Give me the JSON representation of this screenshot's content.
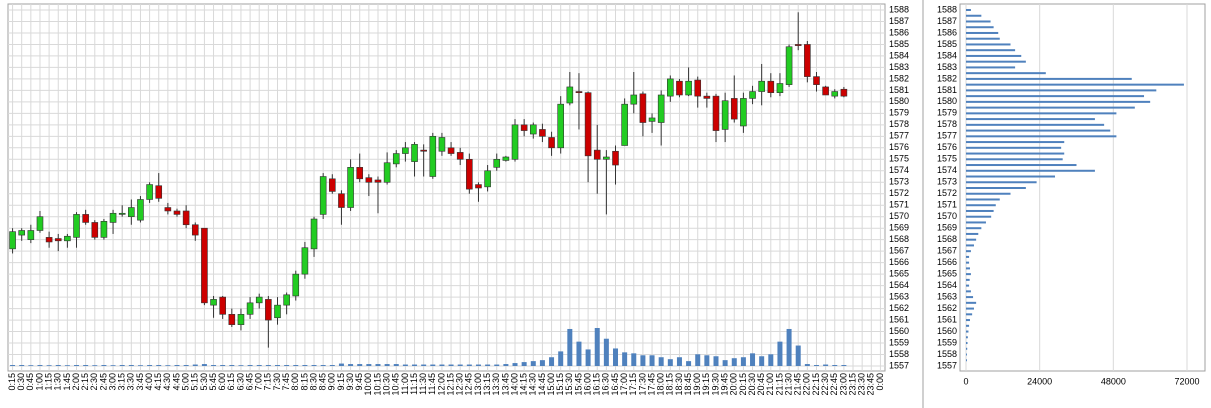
{
  "chart_data": [
    {
      "type": "candlestick",
      "categories": [
        "0:15",
        "0:30",
        "0:45",
        "1:00",
        "1:15",
        "1:30",
        "1:45",
        "2:00",
        "2:15",
        "2:30",
        "2:45",
        "3:00",
        "3:15",
        "3:30",
        "3:45",
        "4:00",
        "4:15",
        "4:30",
        "4:45",
        "5:00",
        "5:15",
        "5:30",
        "5:45",
        "6:00",
        "6:15",
        "6:30",
        "6:45",
        "7:00",
        "7:15",
        "7:30",
        "7:45",
        "8:00",
        "8:15",
        "8:30",
        "8:45",
        "9:00",
        "9:15",
        "9:30",
        "9:45",
        "10:00",
        "10:15",
        "10:30",
        "10:45",
        "11:00",
        "11:15",
        "11:30",
        "11:45",
        "12:00",
        "12:15",
        "12:30",
        "12:45",
        "13:00",
        "13:15",
        "13:30",
        "13:45",
        "14:00",
        "14:15",
        "14:30",
        "14:45",
        "15:00",
        "15:15",
        "15:30",
        "15:45",
        "16:00",
        "16:15",
        "16:30",
        "16:45",
        "17:00",
        "17:15",
        "17:30",
        "17:45",
        "18:00",
        "18:15",
        "18:30",
        "18:45",
        "19:00",
        "19:15",
        "19:30",
        "19:45",
        "20:00",
        "20:15",
        "20:30",
        "20:45",
        "21:00",
        "21:15",
        "21:30",
        "21:45",
        "22:00",
        "22:15",
        "22:30",
        "22:45",
        "23:00",
        "23:15",
        "23:30",
        "23:45",
        "0:00"
      ],
      "open": [
        1567.2,
        1568.4,
        1568,
        1568.8,
        1568.2,
        1568.1,
        1567.9,
        1568.2,
        1570.2,
        1569.5,
        1568.2,
        1569.5,
        1570.2,
        1570,
        1569.7,
        1571.5,
        1572.7,
        1570.8,
        1570.5,
        1570.5,
        1569.3,
        1569,
        1562.3,
        1563,
        1561.5,
        1560.6,
        1561.5,
        1562.5,
        1562.8,
        1561.2,
        1562.3,
        1563.1,
        1565,
        1567.2,
        1570.2,
        1573.3,
        1572,
        1570.8,
        1574.3,
        1573.4,
        1573.2,
        1573,
        1574.6,
        1575.5,
        1574.8,
        1575.8,
        1573.5,
        1575.7,
        1576,
        1575.6,
        1575,
        1572.8,
        1572.6,
        1574.3,
        1574.9,
        1575,
        1578,
        1577.2,
        1577.6,
        1576.9,
        1576,
        1579.9,
        1580.9,
        1580.8,
        1575.8,
        1575,
        1575.7,
        1576.2,
        1579.8,
        1580.7,
        1578.3,
        1578.2,
        1580.5,
        1581.8,
        1580.6,
        1581.9,
        1580.5,
        1580.5,
        1577.6,
        1580.3,
        1577.9,
        1580.3,
        1580.9,
        1581.8,
        1580.8,
        1581.5,
        1585,
        1585,
        1582.2,
        1581.3,
        1580.5,
        1581.1,
        null,
        null,
        null,
        null
      ],
      "high": [
        1569,
        1569,
        1569.3,
        1570.5,
        1568.7,
        1568.5,
        1568.5,
        1570.4,
        1570.6,
        1569.7,
        1569.8,
        1570.6,
        1571,
        1571.5,
        1571.8,
        1573,
        1573.8,
        1571.2,
        1570.7,
        1571,
        1569.5,
        1569,
        1563.1,
        1563.1,
        1562,
        1562,
        1563,
        1563.3,
        1563.1,
        1563,
        1563.4,
        1565.3,
        1567.8,
        1570,
        1573.8,
        1573.7,
        1572.3,
        1575,
        1575.5,
        1573.7,
        1573.5,
        1575.6,
        1575.8,
        1576.5,
        1576.5,
        1576.3,
        1577.3,
        1577.3,
        1576.5,
        1576,
        1575.5,
        1573,
        1574.5,
        1575.5,
        1575.3,
        1578.5,
        1578.5,
        1578.2,
        1578.1,
        1577.4,
        1580.5,
        1582.6,
        1582.5,
        1580.9,
        1578,
        1575.8,
        1576.2,
        1580.3,
        1582.6,
        1580.9,
        1579,
        1581,
        1582.3,
        1582,
        1583,
        1582.2,
        1580.8,
        1580.7,
        1580.8,
        1582.3,
        1580.8,
        1581.4,
        1583.3,
        1582.5,
        1582.5,
        1585,
        1587.8,
        1585.3,
        1582.6,
        1581.4,
        1581.1,
        1581.3,
        null,
        null,
        null,
        null
      ],
      "low": [
        1566.8,
        1567.9,
        1567.7,
        1568.6,
        1567.3,
        1567,
        1567.3,
        1567.3,
        1569.3,
        1568,
        1568,
        1568.5,
        1570,
        1569.3,
        1569.5,
        1571.2,
        1571.3,
        1570.2,
        1570,
        1569,
        1567.9,
        1562.3,
        1561.2,
        1561.1,
        1560.4,
        1560.1,
        1561.1,
        1562,
        1558.6,
        1560.6,
        1561.5,
        1562.7,
        1564.6,
        1566.5,
        1569.8,
        1572,
        1569.3,
        1570.5,
        1573,
        1571.8,
        1570.3,
        1572.8,
        1574.3,
        1574.8,
        1573.5,
        1573.5,
        1573.3,
        1575.3,
        1575.3,
        1574.5,
        1572,
        1571.3,
        1572.2,
        1574,
        1574.8,
        1574.8,
        1577,
        1576.8,
        1576.5,
        1575.3,
        1575.5,
        1579.7,
        1577.6,
        1573,
        1572,
        1570.2,
        1572.8,
        1576.2,
        1579,
        1577,
        1577.3,
        1576.2,
        1580,
        1580.4,
        1580.5,
        1579.5,
        1579.5,
        1576.5,
        1576.5,
        1578.2,
        1577.3,
        1579.8,
        1579.7,
        1580.4,
        1580.5,
        1581.3,
        1584.5,
        1581.7,
        1580.9,
        1580.6,
        1580.3,
        1580.4,
        null,
        null,
        null,
        null
      ],
      "close": [
        1568.7,
        1568.8,
        1568.8,
        1570,
        1567.8,
        1567.9,
        1568.3,
        1570.2,
        1569.5,
        1568.2,
        1569.6,
        1570.3,
        1570.3,
        1570.8,
        1571.5,
        1572.8,
        1571.6,
        1570.5,
        1570.2,
        1569.3,
        1568.4,
        1562.5,
        1562.8,
        1561.5,
        1560.6,
        1561.5,
        1562.5,
        1563,
        1561,
        1562.3,
        1563.2,
        1565,
        1567.3,
        1569.8,
        1573.5,
        1572.2,
        1570.8,
        1574.3,
        1573.3,
        1573,
        1573,
        1574.7,
        1575.5,
        1576,
        1576.3,
        1575.7,
        1577,
        1576.9,
        1575.5,
        1575,
        1572.4,
        1572.5,
        1574,
        1575,
        1575.2,
        1578,
        1577.5,
        1578,
        1577,
        1576,
        1579.8,
        1581.3,
        1580.8,
        1575.3,
        1575,
        1575.2,
        1574.5,
        1579.8,
        1580.6,
        1578.2,
        1578.6,
        1580.6,
        1582,
        1580.6,
        1581.8,
        1580.5,
        1580.3,
        1577.5,
        1580.1,
        1578.5,
        1580.3,
        1580.9,
        1581.8,
        1580.8,
        1581.6,
        1584.8,
        1584.9,
        1582.2,
        1581.5,
        1580.6,
        1580.9,
        1580.5,
        null,
        null,
        null,
        null
      ],
      "volume": [
        100,
        100,
        80,
        100,
        80,
        100,
        80,
        100,
        100,
        80,
        100,
        80,
        100,
        100,
        80,
        100,
        100,
        80,
        100,
        100,
        150,
        200,
        100,
        100,
        100,
        80,
        100,
        100,
        100,
        100,
        100,
        100,
        100,
        100,
        100,
        100,
        250,
        200,
        200,
        200,
        200,
        200,
        200,
        150,
        150,
        150,
        150,
        150,
        150,
        150,
        150,
        150,
        150,
        150,
        200,
        300,
        400,
        500,
        600,
        900,
        1500,
        3800,
        2500,
        1700,
        3900,
        2800,
        1800,
        1400,
        1300,
        1100,
        1100,
        900,
        700,
        900,
        500,
        1200,
        1100,
        1000,
        600,
        800,
        900,
        1300,
        1000,
        1200,
        2500,
        3800,
        2100,
        200,
        100,
        150,
        100,
        100,
        null,
        null,
        null,
        null
      ],
      "up_color": "#22cc22",
      "down_color": "#cc0000",
      "volume_color": "#4f81bd",
      "ylim": [
        1557,
        1588
      ],
      "yticks": [
        1557,
        1558,
        1559,
        1560,
        1561,
        1562,
        1563,
        1564,
        1565,
        1566,
        1567,
        1568,
        1569,
        1570,
        1571,
        1572,
        1573,
        1574,
        1575,
        1576,
        1577,
        1578,
        1579,
        1580,
        1581,
        1582,
        1583,
        1584,
        1585,
        1586,
        1587,
        1588
      ],
      "grid": true
    },
    {
      "type": "hbar",
      "y": [
        1557.5,
        1558,
        1558.5,
        1559,
        1559.5,
        1560,
        1560.5,
        1561,
        1561.5,
        1562,
        1562.5,
        1563,
        1563.5,
        1564,
        1564.5,
        1565,
        1565.5,
        1566,
        1566.5,
        1567,
        1567.5,
        1568,
        1568.5,
        1569,
        1569.5,
        1570,
        1570.5,
        1571,
        1571.5,
        1572,
        1572.5,
        1573,
        1573.5,
        1574,
        1574.5,
        1575,
        1575.5,
        1576,
        1576.5,
        1577,
        1577.5,
        1578,
        1578.5,
        1579,
        1579.5,
        1580,
        1580.5,
        1581,
        1581.5,
        1582,
        1582.5,
        1583,
        1583.5,
        1584,
        1584.5,
        1585,
        1585.5,
        1586,
        1586.5,
        1587,
        1587.5,
        1588
      ],
      "values": [
        300,
        300,
        400,
        500,
        600,
        800,
        1000,
        1300,
        2000,
        2600,
        3300,
        2300,
        1600,
        1000,
        1200,
        1600,
        1300,
        1000,
        1000,
        1600,
        2600,
        3300,
        4000,
        5000,
        6500,
        8200,
        9000,
        9700,
        11000,
        14500,
        19500,
        23000,
        29000,
        42000,
        36000,
        31500,
        32000,
        31000,
        32000,
        49000,
        47000,
        45000,
        42000,
        49000,
        55000,
        60000,
        58000,
        62000,
        71000,
        54000,
        26000,
        16000,
        19500,
        18000,
        16000,
        14500,
        11000,
        10500,
        9000,
        8000,
        5000,
        1600
      ],
      "color": "#4f81bd",
      "xlim": [
        0,
        72000
      ],
      "xticks": [
        0,
        24000,
        48000,
        72000
      ],
      "ylim": [
        1557,
        1588
      ],
      "yticks": [
        1557,
        1558,
        1559,
        1560,
        1561,
        1562,
        1563,
        1564,
        1565,
        1566,
        1567,
        1568,
        1569,
        1570,
        1571,
        1572,
        1573,
        1574,
        1575,
        1576,
        1577,
        1578,
        1579,
        1580,
        1581,
        1582,
        1583,
        1584,
        1585,
        1586,
        1587,
        1588
      ],
      "grid": true
    }
  ]
}
